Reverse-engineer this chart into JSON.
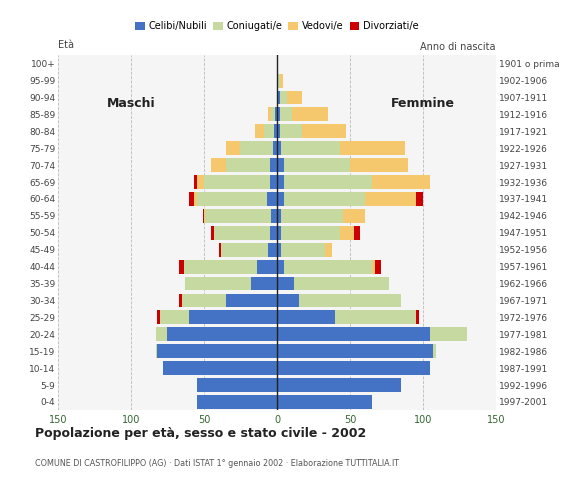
{
  "age_groups": [
    "0-4",
    "5-9",
    "10-14",
    "15-19",
    "20-24",
    "25-29",
    "30-34",
    "35-39",
    "40-44",
    "45-49",
    "50-54",
    "55-59",
    "60-64",
    "65-69",
    "70-74",
    "75-79",
    "80-84",
    "85-89",
    "90-94",
    "95-99",
    "100+"
  ],
  "birth_years": [
    "1997-2001",
    "1992-1996",
    "1987-1991",
    "1982-1986",
    "1977-1981",
    "1972-1976",
    "1967-1971",
    "1962-1966",
    "1957-1961",
    "1952-1956",
    "1947-1951",
    "1942-1946",
    "1937-1941",
    "1932-1936",
    "1927-1931",
    "1922-1926",
    "1917-1921",
    "1912-1916",
    "1907-1911",
    "1902-1906",
    "1901 o prima"
  ],
  "males": {
    "celibe": [
      55,
      55,
      78,
      82,
      75,
      60,
      35,
      18,
      14,
      6,
      5,
      4,
      7,
      5,
      5,
      3,
      2,
      1,
      0,
      0,
      0
    ],
    "coniugato": [
      0,
      0,
      0,
      1,
      8,
      20,
      30,
      45,
      50,
      32,
      38,
      45,
      48,
      45,
      30,
      22,
      7,
      3,
      0,
      0,
      0
    ],
    "vedovo": [
      0,
      0,
      0,
      0,
      0,
      0,
      0,
      0,
      0,
      0,
      0,
      1,
      2,
      5,
      10,
      10,
      6,
      2,
      0,
      0,
      0
    ],
    "divorziato": [
      0,
      0,
      0,
      0,
      0,
      2,
      2,
      0,
      3,
      2,
      2,
      1,
      3,
      2,
      0,
      0,
      0,
      0,
      0,
      0,
      0
    ]
  },
  "females": {
    "nubile": [
      65,
      85,
      105,
      107,
      105,
      40,
      15,
      12,
      5,
      3,
      3,
      3,
      5,
      5,
      5,
      3,
      2,
      2,
      2,
      0,
      0
    ],
    "coniugata": [
      0,
      0,
      0,
      2,
      25,
      55,
      70,
      65,
      60,
      30,
      40,
      42,
      55,
      60,
      45,
      40,
      15,
      8,
      5,
      2,
      0
    ],
    "vedova": [
      0,
      0,
      0,
      0,
      0,
      0,
      0,
      0,
      2,
      5,
      10,
      15,
      35,
      40,
      40,
      45,
      30,
      25,
      10,
      2,
      0
    ],
    "divorziata": [
      0,
      0,
      0,
      0,
      0,
      2,
      0,
      0,
      4,
      0,
      4,
      0,
      5,
      0,
      0,
      0,
      0,
      0,
      0,
      0,
      0
    ]
  },
  "colors": {
    "celibe": "#4472c4",
    "coniugato": "#c5d9a0",
    "vedovo": "#f5c86e",
    "divorziato": "#cc0000"
  },
  "xlim": 150,
  "title": "Popolazione per età, sesso e stato civile - 2002",
  "subtitle": "COMUNE DI CASTROFILIPPO (AG) · Dati ISTAT 1° gennaio 2002 · Elaborazione TUTTITALIA.IT",
  "ylabel_left": "Età",
  "ylabel_right": "Anno di nascita",
  "xlabel_left": "Maschi",
  "xlabel_right": "Femmine",
  "legend_labels": [
    "Celibi/Nubili",
    "Coniugati/e",
    "Vedovi/e",
    "Divorziati/e"
  ],
  "xtick_positions": [
    -150,
    -100,
    -50,
    0,
    50,
    100,
    150
  ],
  "background_color": "#ffffff",
  "plot_bg_color": "#f5f5f5"
}
